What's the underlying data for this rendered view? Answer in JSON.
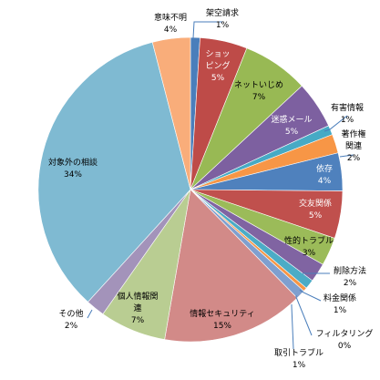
{
  "chart_data": {
    "type": "pie",
    "title": "",
    "start_angle_deg": 0,
    "direction": "clockwise",
    "slices": [
      {
        "name": "架空請求",
        "percent_label": "1%",
        "value": 1,
        "color": "#4a7ebb"
      },
      {
        "name": "ショッピング",
        "percent_label": "5%",
        "value": 5,
        "color": "#be4b48"
      },
      {
        "name": "ネットいじめ",
        "percent_label": "7%",
        "value": 7,
        "color": "#98b954"
      },
      {
        "name": "迷惑メール",
        "percent_label": "5%",
        "value": 5,
        "color": "#7d60a0"
      },
      {
        "name": "有害情報",
        "percent_label": "1%",
        "value": 1,
        "color": "#46aac5"
      },
      {
        "name": "著作権関連",
        "percent_label": "2%",
        "value": 2,
        "color": "#f79646"
      },
      {
        "name": "依存",
        "percent_label": "4%",
        "value": 4,
        "color": "#4f81bd"
      },
      {
        "name": "交友関係",
        "percent_label": "5%",
        "value": 5,
        "color": "#c0504d"
      },
      {
        "name": "性的トラブル",
        "percent_label": "3%",
        "value": 3,
        "color": "#9bbb59"
      },
      {
        "name": "削除方法",
        "percent_label": "2%",
        "value": 2,
        "color": "#8064a2"
      },
      {
        "name": "料金関係",
        "percent_label": "1%",
        "value": 1,
        "color": "#4bacc6"
      },
      {
        "name": "フィルタリング",
        "percent_label": "0%",
        "value": 0.4,
        "color": "#f79646"
      },
      {
        "name": "取引トラブル",
        "percent_label": "1%",
        "value": 1,
        "color": "#7f9fcf"
      },
      {
        "name": "情報セキュリティ",
        "percent_label": "15%",
        "value": 15,
        "color": "#d28a88"
      },
      {
        "name": "個人情報関連",
        "percent_label": "7%",
        "value": 7,
        "color": "#b9cd92"
      },
      {
        "name": "その他",
        "percent_label": "2%",
        "value": 2,
        "color": "#a393ba"
      },
      {
        "name": "対象外の相談",
        "percent_label": "34%",
        "value": 34,
        "color": "#7fbad2"
      },
      {
        "name": "意味不明",
        "percent_label": "4%",
        "value": 4,
        "color": "#f9ad7a"
      }
    ],
    "legend": "none"
  }
}
